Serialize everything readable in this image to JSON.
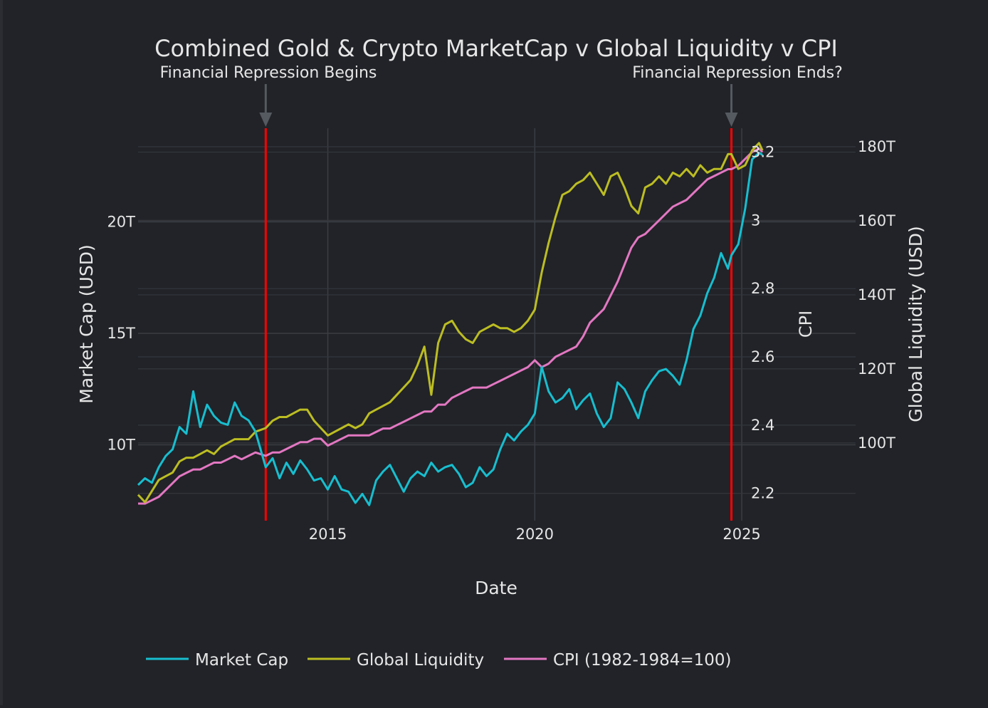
{
  "chart_data": {
    "type": "line",
    "title": "Combined Gold & Crypto MarketCap v Global Liquidity v CPI",
    "xlabel": "Date",
    "y_left_label": "Market Cap (USD)",
    "y_cpi_label": "CPI",
    "y_right_label": "Global Liquidity (USD)",
    "x_ticks": [
      "2015",
      "2020",
      "2025"
    ],
    "y_left_ticks": [
      "10T",
      "15T",
      "20T"
    ],
    "y_cpi_ticks": [
      "2.2",
      "2.4",
      "2.6",
      "2.8",
      "3",
      "3.2"
    ],
    "y_right_ticks": [
      "100T",
      "120T",
      "140T",
      "160T",
      "180T"
    ],
    "xlim": [
      "2010-06-01",
      "2027-10-01"
    ],
    "ylim_left": [
      6.6,
      24.2
    ],
    "ylim_cpi": [
      2.12,
      3.27
    ],
    "ylim_right": [
      79,
      185
    ],
    "legend_position": "bottom-center",
    "annotations": [
      {
        "text": "Financial Repression Begins",
        "x": "2013-07-01"
      },
      {
        "text": "Financial Repression Ends?",
        "x": "2024-10-01"
      }
    ],
    "vertical_lines": [
      "2013-07-01",
      "2024-10-01"
    ],
    "series": [
      {
        "name": "Market Cap",
        "color": "#17becf",
        "axis": "left",
        "unit": "T USD",
        "x": [
          "2010-06",
          "2010-08",
          "2010-10",
          "2010-12",
          "2011-02",
          "2011-04",
          "2011-06",
          "2011-08",
          "2011-10",
          "2011-12",
          "2012-02",
          "2012-04",
          "2012-06",
          "2012-08",
          "2012-10",
          "2012-12",
          "2013-02",
          "2013-04",
          "2013-07",
          "2013-09",
          "2013-11",
          "2014-01",
          "2014-03",
          "2014-05",
          "2014-07",
          "2014-09",
          "2014-11",
          "2015-01",
          "2015-03",
          "2015-05",
          "2015-07",
          "2015-09",
          "2015-11",
          "2016-01",
          "2016-03",
          "2016-05",
          "2016-07",
          "2016-09",
          "2016-11",
          "2017-01",
          "2017-03",
          "2017-05",
          "2017-07",
          "2017-09",
          "2017-11",
          "2018-01",
          "2018-03",
          "2018-05",
          "2018-07",
          "2018-09",
          "2018-11",
          "2019-01",
          "2019-03",
          "2019-05",
          "2019-07",
          "2019-09",
          "2019-11",
          "2020-01",
          "2020-03",
          "2020-05",
          "2020-07",
          "2020-09",
          "2020-11",
          "2021-01",
          "2021-03",
          "2021-05",
          "2021-07",
          "2021-09",
          "2021-11",
          "2022-01",
          "2022-03",
          "2022-05",
          "2022-07",
          "2022-09",
          "2022-11",
          "2023-01",
          "2023-03",
          "2023-05",
          "2023-07",
          "2023-09",
          "2023-11",
          "2024-01",
          "2024-03",
          "2024-05",
          "2024-07",
          "2024-09",
          "2024-10",
          "2024-12",
          "2025-02",
          "2025-04",
          "2025-06",
          "2025-07"
        ],
        "values": [
          8.2,
          8.5,
          8.3,
          9.0,
          9.5,
          9.8,
          10.8,
          10.5,
          12.4,
          10.8,
          11.8,
          11.3,
          11.0,
          10.9,
          11.9,
          11.3,
          11.1,
          10.6,
          9.0,
          9.4,
          8.5,
          9.2,
          8.7,
          9.3,
          8.9,
          8.4,
          8.5,
          8.0,
          8.6,
          8.0,
          7.9,
          7.4,
          7.8,
          7.3,
          8.4,
          8.8,
          9.1,
          8.5,
          7.9,
          8.5,
          8.8,
          8.6,
          9.2,
          8.8,
          9.0,
          9.1,
          8.7,
          8.1,
          8.3,
          9.0,
          8.6,
          8.9,
          9.8,
          10.5,
          10.2,
          10.6,
          10.9,
          11.4,
          13.5,
          12.4,
          11.9,
          12.1,
          12.5,
          11.6,
          12.0,
          12.3,
          11.4,
          10.8,
          11.2,
          12.8,
          12.5,
          11.9,
          11.2,
          12.4,
          12.9,
          13.3,
          13.4,
          13.1,
          12.7,
          13.8,
          15.2,
          15.8,
          16.8,
          17.5,
          18.6,
          17.9,
          18.5,
          19.0,
          20.6,
          22.8,
          23.1,
          23.0
        ]
      },
      {
        "name": "Global Liquidity",
        "color": "#bcbd22",
        "axis": "right",
        "unit": "T USD",
        "x": [
          "2010-06",
          "2010-08",
          "2010-10",
          "2010-12",
          "2011-02",
          "2011-04",
          "2011-06",
          "2011-08",
          "2011-10",
          "2011-12",
          "2012-02",
          "2012-04",
          "2012-06",
          "2012-08",
          "2012-10",
          "2012-12",
          "2013-02",
          "2013-04",
          "2013-07",
          "2013-09",
          "2013-11",
          "2014-01",
          "2014-03",
          "2014-05",
          "2014-07",
          "2014-09",
          "2014-11",
          "2015-01",
          "2015-03",
          "2015-05",
          "2015-07",
          "2015-09",
          "2015-11",
          "2016-01",
          "2016-03",
          "2016-05",
          "2016-07",
          "2016-09",
          "2016-11",
          "2017-01",
          "2017-03",
          "2017-05",
          "2017-07",
          "2017-09",
          "2017-11",
          "2018-01",
          "2018-03",
          "2018-05",
          "2018-07",
          "2018-09",
          "2018-11",
          "2019-01",
          "2019-03",
          "2019-05",
          "2019-07",
          "2019-09",
          "2019-11",
          "2020-01",
          "2020-03",
          "2020-05",
          "2020-07",
          "2020-09",
          "2020-11",
          "2021-01",
          "2021-03",
          "2021-05",
          "2021-07",
          "2021-09",
          "2021-11",
          "2022-01",
          "2022-03",
          "2022-05",
          "2022-07",
          "2022-09",
          "2022-11",
          "2023-01",
          "2023-03",
          "2023-05",
          "2023-07",
          "2023-09",
          "2023-11",
          "2024-01",
          "2024-03",
          "2024-05",
          "2024-07",
          "2024-09",
          "2024-10",
          "2024-12",
          "2025-02",
          "2025-04",
          "2025-06",
          "2025-07"
        ],
        "values": [
          86,
          84,
          87,
          90,
          91,
          92,
          95,
          96,
          96,
          97,
          98,
          97,
          99,
          100,
          101,
          101,
          101,
          103,
          104,
          106,
          107,
          107,
          108,
          109,
          109,
          106,
          104,
          102,
          103,
          104,
          105,
          104,
          105,
          108,
          109,
          110,
          111,
          113,
          115,
          117,
          121,
          126,
          113,
          127,
          132,
          133,
          130,
          128,
          127,
          130,
          131,
          132,
          131,
          131,
          130,
          131,
          133,
          136,
          146,
          154,
          161,
          167,
          168,
          170,
          171,
          173,
          170,
          167,
          172,
          173,
          169,
          164,
          162,
          169,
          170,
          172,
          170,
          173,
          172,
          174,
          172,
          175,
          173,
          174,
          174,
          178,
          178,
          174,
          175,
          179,
          181,
          179
        ]
      },
      {
        "name": "CPI (1982-1984=100)",
        "color": "#e377c2",
        "axis": "cpi",
        "unit": "",
        "x": [
          "2010-06",
          "2010-08",
          "2010-10",
          "2010-12",
          "2011-02",
          "2011-04",
          "2011-06",
          "2011-08",
          "2011-10",
          "2011-12",
          "2012-02",
          "2012-04",
          "2012-06",
          "2012-08",
          "2012-10",
          "2012-12",
          "2013-02",
          "2013-04",
          "2013-07",
          "2013-09",
          "2013-11",
          "2014-01",
          "2014-03",
          "2014-05",
          "2014-07",
          "2014-09",
          "2014-11",
          "2015-01",
          "2015-03",
          "2015-05",
          "2015-07",
          "2015-09",
          "2015-11",
          "2016-01",
          "2016-03",
          "2016-05",
          "2016-07",
          "2016-09",
          "2016-11",
          "2017-01",
          "2017-03",
          "2017-05",
          "2017-07",
          "2017-09",
          "2017-11",
          "2018-01",
          "2018-03",
          "2018-05",
          "2018-07",
          "2018-09",
          "2018-11",
          "2019-01",
          "2019-03",
          "2019-05",
          "2019-07",
          "2019-09",
          "2019-11",
          "2020-01",
          "2020-03",
          "2020-05",
          "2020-07",
          "2020-09",
          "2020-11",
          "2021-01",
          "2021-03",
          "2021-05",
          "2021-07",
          "2021-09",
          "2021-11",
          "2022-01",
          "2022-03",
          "2022-05",
          "2022-07",
          "2022-09",
          "2022-11",
          "2023-01",
          "2023-03",
          "2023-05",
          "2023-07",
          "2023-09",
          "2023-11",
          "2024-01",
          "2024-03",
          "2024-05",
          "2024-07",
          "2024-09",
          "2024-10",
          "2024-12",
          "2025-02",
          "2025-04",
          "2025-06",
          "2025-07"
        ],
        "values": [
          2.17,
          2.17,
          2.18,
          2.19,
          2.21,
          2.23,
          2.25,
          2.26,
          2.27,
          2.27,
          2.28,
          2.29,
          2.29,
          2.3,
          2.31,
          2.3,
          2.31,
          2.32,
          2.31,
          2.32,
          2.32,
          2.33,
          2.34,
          2.35,
          2.35,
          2.36,
          2.36,
          2.34,
          2.35,
          2.36,
          2.37,
          2.37,
          2.37,
          2.37,
          2.38,
          2.39,
          2.39,
          2.4,
          2.41,
          2.42,
          2.43,
          2.44,
          2.44,
          2.46,
          2.46,
          2.48,
          2.49,
          2.5,
          2.51,
          2.51,
          2.51,
          2.52,
          2.53,
          2.54,
          2.55,
          2.56,
          2.57,
          2.59,
          2.57,
          2.58,
          2.6,
          2.61,
          2.62,
          2.63,
          2.66,
          2.7,
          2.72,
          2.74,
          2.78,
          2.82,
          2.87,
          2.92,
          2.95,
          2.96,
          2.98,
          3.0,
          3.02,
          3.04,
          3.05,
          3.06,
          3.08,
          3.1,
          3.12,
          3.13,
          3.14,
          3.15,
          3.15,
          3.16,
          3.18,
          3.2,
          3.21,
          3.2
        ]
      }
    ]
  }
}
